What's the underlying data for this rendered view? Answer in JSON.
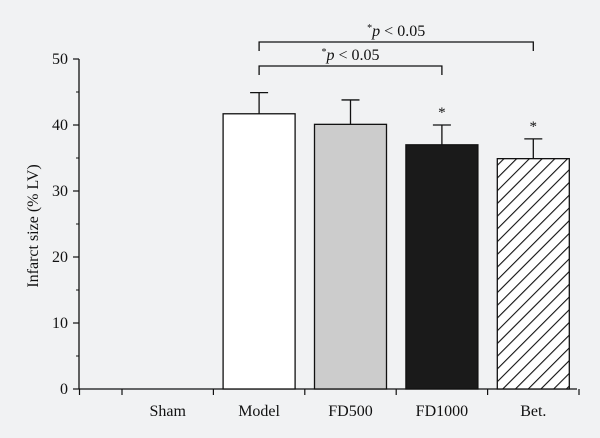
{
  "chart_data": {
    "type": "bar",
    "categories": [
      "Sham",
      "Model",
      "FD500",
      "FD1000",
      "Bet."
    ],
    "values": [
      0,
      41.7,
      40.1,
      37.0,
      34.9
    ],
    "errors": [
      0,
      3.2,
      3.7,
      3.0,
      3.0
    ],
    "fills": [
      "none",
      "#ffffff",
      "#cccccc",
      "#1a1a1a",
      "hatch"
    ],
    "bar_star": [
      "",
      "",
      "",
      "*",
      "*"
    ],
    "ylabel": "Infarct size (% LV)",
    "xlabel": "",
    "ylim": [
      0,
      50
    ],
    "yticks": [
      0,
      10,
      20,
      30,
      40,
      50
    ],
    "grid": false,
    "comparisons": [
      {
        "from": "Model",
        "to": "FD1000",
        "star": "*",
        "p": "p",
        "text": " < 0.05"
      },
      {
        "from": "Model",
        "to": "Bet.",
        "star": "*",
        "p": "p",
        "text": " < 0.05"
      }
    ]
  }
}
